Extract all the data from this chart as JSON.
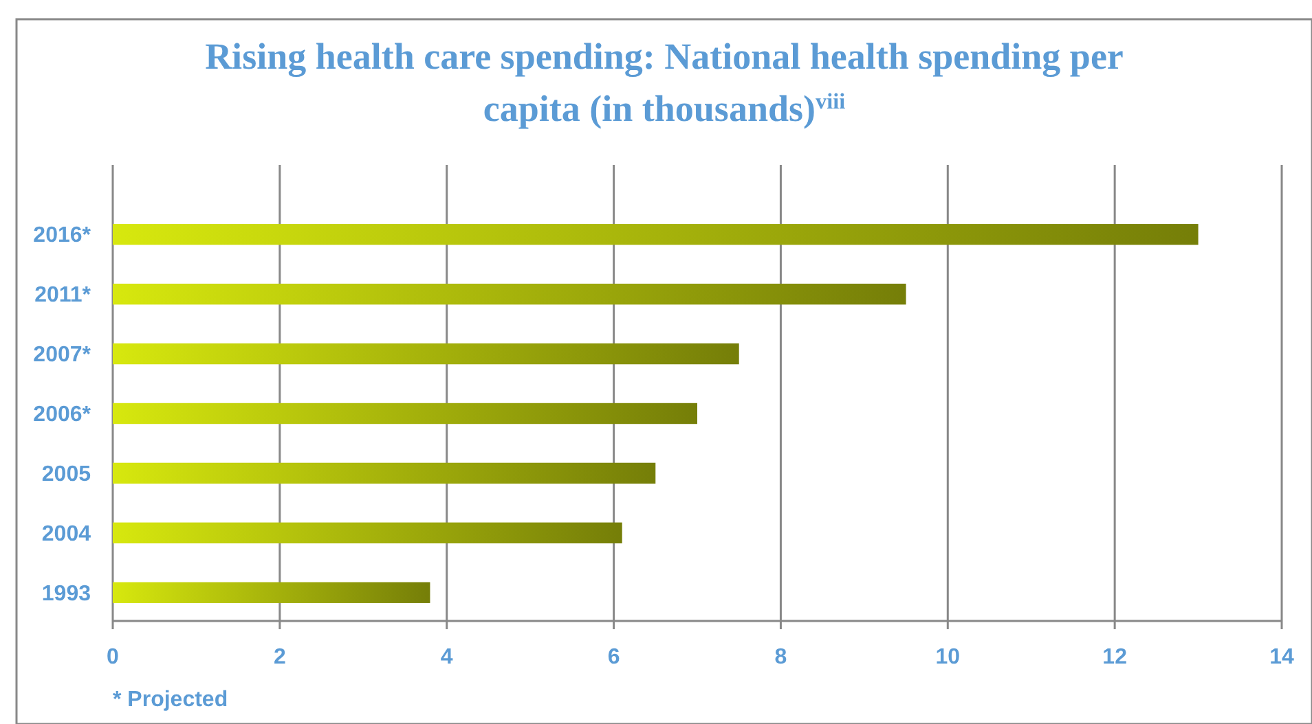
{
  "chart_data": {
    "type": "bar",
    "orientation": "horizontal",
    "title": "Rising health care spending: National health spending per capita (in thousands)$^{viii}$",
    "categories": [
      "2016*",
      "2011*",
      "2007*",
      "2006*",
      "2005",
      "2004",
      "1993"
    ],
    "series": [
      {
        "color": "#9ca80a",
        "values": [
          13,
          9.5,
          7.5,
          7,
          6.5,
          6.1,
          3.8
        ]
      }
    ],
    "xlim": [
      0,
      14
    ],
    "xticks": [
      0,
      2,
      4,
      6,
      8,
      10,
      12,
      14
    ],
    "grid": "x",
    "annotations": [
      "* Projected"
    ]
  }
}
